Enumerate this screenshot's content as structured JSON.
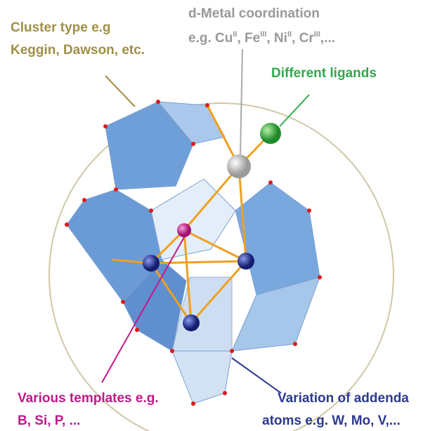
{
  "labels": {
    "cluster": [
      "Cluster type e.g",
      "Keggin, Dawson, etc."
    ],
    "metal": {
      "title": "d-Metal coordination",
      "parts": [
        "e.g. Cu",
        "II",
        ", Fe",
        "III",
        ", Ni",
        "II",
        ", Cr",
        "III",
        ",..."
      ]
    },
    "ligands": "Different ligands",
    "templates": [
      "Various templates e.g.",
      "B, Si, P, ..."
    ],
    "addenda": [
      "Variation of addenda",
      "atoms e.g. W, Mo, V,..."
    ]
  }
}
